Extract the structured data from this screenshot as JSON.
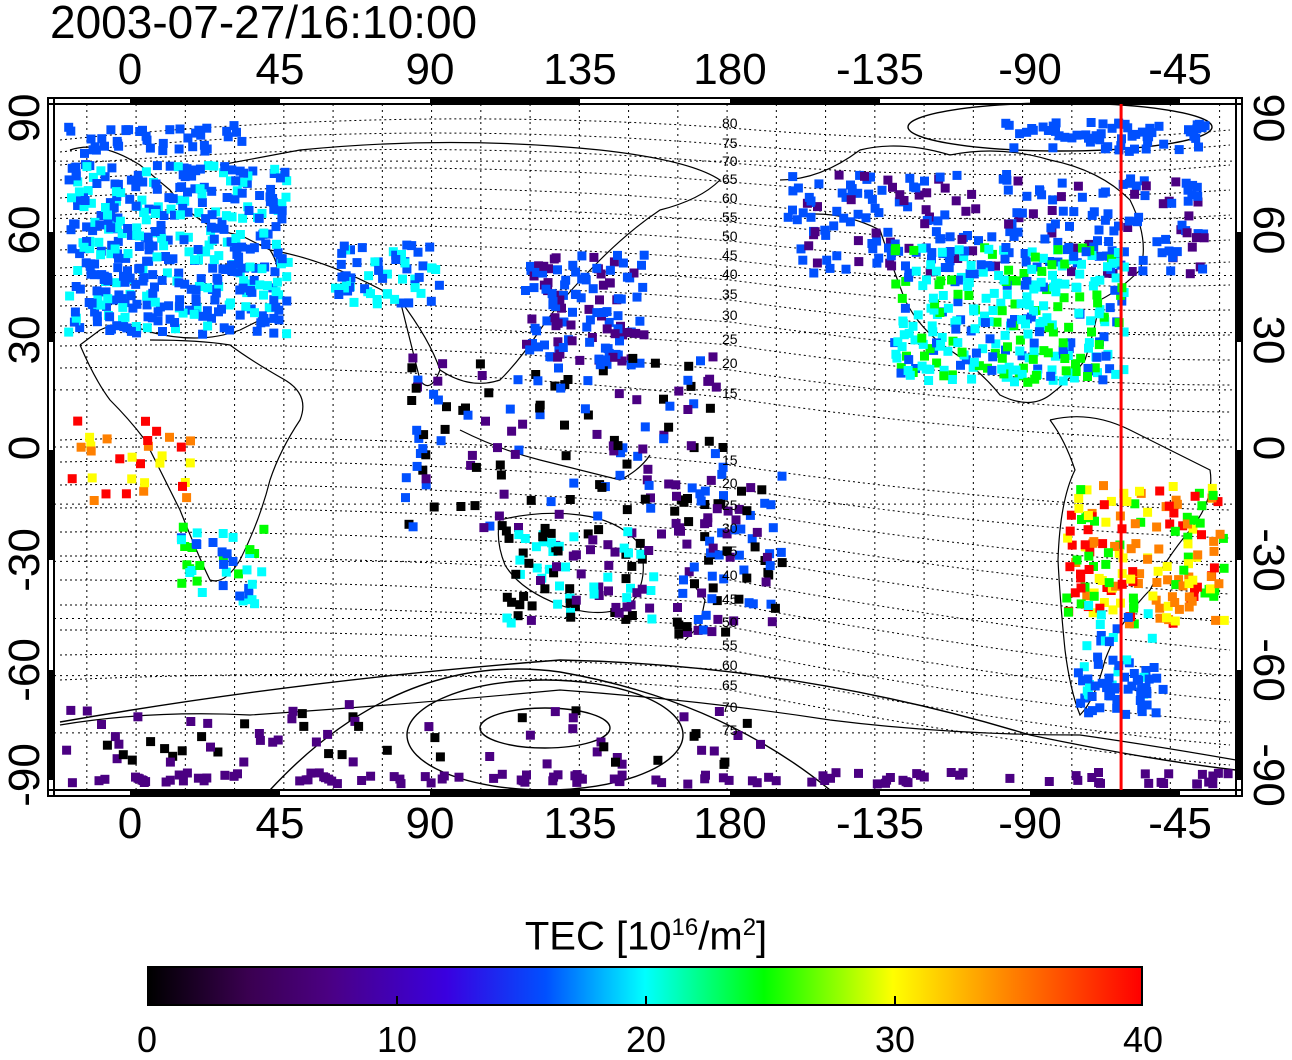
{
  "timestamp": "2003-07-27/16:10:00",
  "lon_ticks": [
    "0",
    "45",
    "90",
    "135",
    "180",
    "-135",
    "-90",
    "-45"
  ],
  "lat_ticks": [
    "90",
    "60",
    "30",
    "0",
    "-30",
    "-60",
    "-90"
  ],
  "contour_labels_north": [
    "80",
    "75",
    "70",
    "65",
    "60",
    "55",
    "50",
    "45",
    "40",
    "35",
    "30",
    "25",
    "20",
    "15"
  ],
  "contour_labels_south": [
    "15",
    "20",
    "25",
    "30",
    "35",
    "40",
    "45",
    "50",
    "55",
    "60",
    "65",
    "70",
    "75"
  ],
  "colorbar": {
    "title_main": "TEC  [10",
    "title_sup1": "16",
    "title_mid": "/m",
    "title_sup2": "2",
    "title_end": "]",
    "ticks": [
      "0",
      "10",
      "20",
      "30",
      "40"
    ],
    "colors": [
      "#000000",
      "#4b0082",
      "#0050ff",
      "#00ffff",
      "#00ff00",
      "#ffff00",
      "#ff8000",
      "#ff0000"
    ]
  },
  "marker": {
    "longitude": -60,
    "color": "#ff0000"
  },
  "range": {
    "lon": [
      -25,
      335
    ],
    "lat": [
      -90,
      90
    ],
    "tec": [
      0,
      40
    ]
  }
}
